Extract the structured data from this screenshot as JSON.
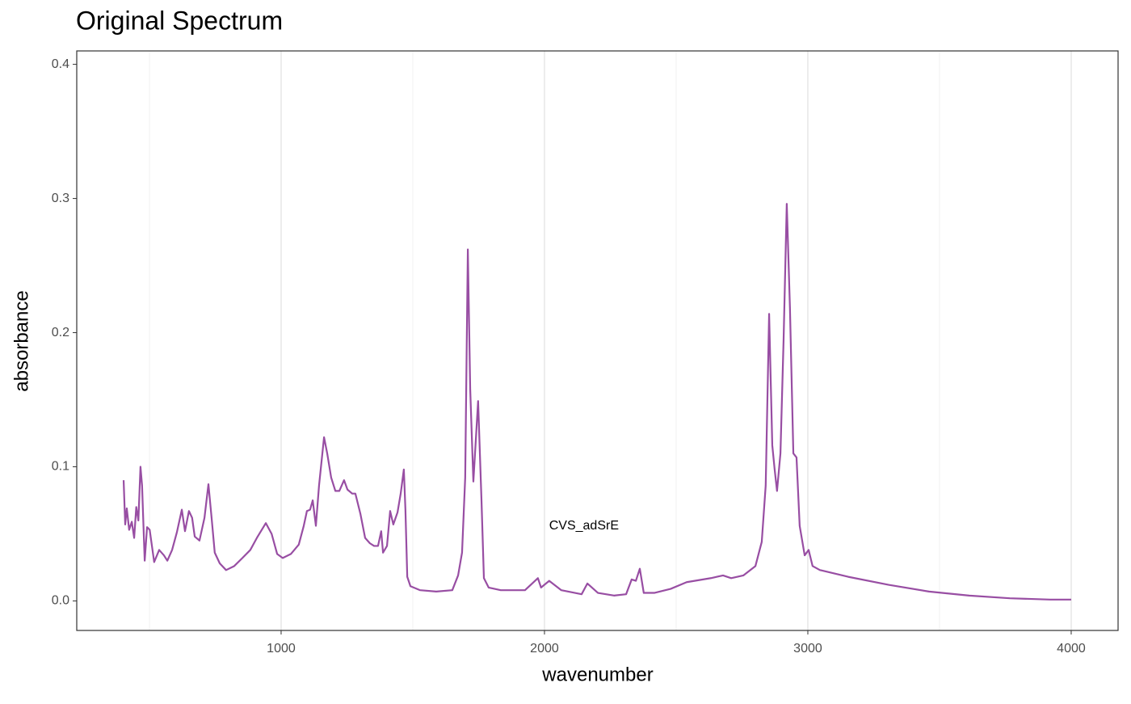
{
  "chart_data": {
    "type": "line",
    "title": "Original Spectrum",
    "xlabel": "wavenumber",
    "ylabel": "absorbance",
    "color": "#984ea3",
    "x": [
      402,
      408,
      414,
      423,
      433,
      442,
      450,
      458,
      466,
      472,
      482,
      491,
      501,
      518,
      537,
      555,
      568,
      586,
      604,
      623,
      635,
      650,
      662,
      672,
      690,
      709,
      724,
      736,
      748,
      767,
      791,
      822,
      853,
      883,
      908,
      942,
      964,
      985,
      1006,
      1037,
      1067,
      1086,
      1098,
      1110,
      1120,
      1132,
      1144,
      1163,
      1175,
      1190,
      1206,
      1221,
      1239,
      1252,
      1270,
      1282,
      1301,
      1319,
      1337,
      1353,
      1368,
      1380,
      1387,
      1402,
      1414,
      1426,
      1442,
      1454,
      1466,
      1472,
      1479,
      1491,
      1528,
      1589,
      1650,
      1672,
      1687,
      1699,
      1709,
      1718,
      1730,
      1748,
      1761,
      1770,
      1788,
      1834,
      1926,
      1975,
      1987,
      2018,
      2064,
      2141,
      2163,
      2203,
      2264,
      2310,
      2331,
      2347,
      2362,
      2377,
      2417,
      2479,
      2540,
      2632,
      2678,
      2709,
      2755,
      2801,
      2825,
      2840,
      2853,
      2865,
      2874,
      2883,
      2896,
      2908,
      2920,
      2932,
      2945,
      2957,
      2969,
      2988,
      3003,
      3018,
      3046,
      3153,
      3307,
      3460,
      3613,
      3767,
      3920,
      4000
    ],
    "values": [
      0.09,
      0.057,
      0.069,
      0.053,
      0.059,
      0.047,
      0.07,
      0.06,
      0.1,
      0.086,
      0.03,
      0.055,
      0.053,
      0.029,
      0.038,
      0.034,
      0.03,
      0.038,
      0.051,
      0.068,
      0.052,
      0.067,
      0.062,
      0.048,
      0.045,
      0.062,
      0.087,
      0.062,
      0.036,
      0.028,
      0.023,
      0.026,
      0.032,
      0.038,
      0.047,
      0.058,
      0.05,
      0.035,
      0.032,
      0.035,
      0.042,
      0.056,
      0.067,
      0.068,
      0.075,
      0.056,
      0.086,
      0.122,
      0.11,
      0.092,
      0.082,
      0.082,
      0.09,
      0.083,
      0.08,
      0.08,
      0.065,
      0.047,
      0.043,
      0.041,
      0.041,
      0.052,
      0.036,
      0.041,
      0.067,
      0.057,
      0.066,
      0.08,
      0.098,
      0.068,
      0.018,
      0.011,
      0.008,
      0.007,
      0.008,
      0.019,
      0.036,
      0.092,
      0.262,
      0.158,
      0.089,
      0.149,
      0.074,
      0.017,
      0.01,
      0.008,
      0.008,
      0.017,
      0.01,
      0.015,
      0.008,
      0.005,
      0.013,
      0.006,
      0.004,
      0.005,
      0.016,
      0.015,
      0.024,
      0.006,
      0.006,
      0.009,
      0.014,
      0.017,
      0.019,
      0.017,
      0.019,
      0.026,
      0.044,
      0.086,
      0.214,
      0.116,
      0.098,
      0.082,
      0.11,
      0.195,
      0.296,
      0.219,
      0.11,
      0.107,
      0.056,
      0.034,
      0.038,
      0.026,
      0.023,
      0.018,
      0.012,
      0.007,
      0.004,
      0.002,
      0.001,
      0.001
    ],
    "xlim": [
      224,
      4178
    ],
    "xticks": [
      1000,
      2000,
      3000,
      4000
    ],
    "x_minor_grid": [
      500,
      1500,
      2500,
      3500
    ],
    "ylim": [
      -0.022,
      0.41
    ],
    "yticks": [
      {
        "value": 0,
        "label": "0.0"
      },
      0.1,
      0.2,
      0.3,
      0.4
    ],
    "grid": "x",
    "annotation": {
      "text": "CVS_adSrE",
      "x": 2150,
      "y": 0.056
    }
  }
}
